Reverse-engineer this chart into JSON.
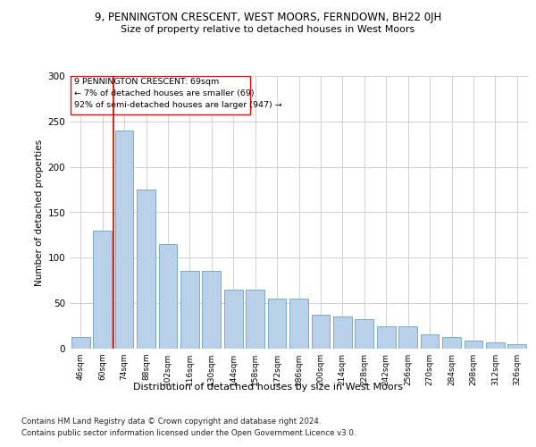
{
  "title": "9, PENNINGTON CRESCENT, WEST MOORS, FERNDOWN, BH22 0JH",
  "subtitle": "Size of property relative to detached houses in West Moors",
  "xlabel": "Distribution of detached houses by size in West Moors",
  "ylabel": "Number of detached properties",
  "categories": [
    "46sqm",
    "60sqm",
    "74sqm",
    "88sqm",
    "102sqm",
    "116sqm",
    "130sqm",
    "144sqm",
    "158sqm",
    "172sqm",
    "186sqm",
    "200sqm",
    "214sqm",
    "228sqm",
    "242sqm",
    "256sqm",
    "270sqm",
    "284sqm",
    "298sqm",
    "312sqm",
    "326sqm"
  ],
  "values": [
    13,
    130,
    240,
    175,
    115,
    86,
    86,
    65,
    65,
    55,
    55,
    37,
    35,
    32,
    25,
    25,
    16,
    13,
    9,
    7,
    5
  ],
  "bar_color": "#b8d0e8",
  "bar_edge_color": "#7aaaca",
  "annotation_box_text": "9 PENNINGTON CRESCENT: 69sqm\n← 7% of detached houses are smaller (69)\n92% of semi-detached houses are larger (947) →",
  "vline_color": "#cc0000",
  "footer_line1": "Contains HM Land Registry data © Crown copyright and database right 2024.",
  "footer_line2": "Contains public sector information licensed under the Open Government Licence v3.0.",
  "ylim": [
    0,
    300
  ],
  "background_color": "#ffffff",
  "grid_color": "#d0d0d0"
}
